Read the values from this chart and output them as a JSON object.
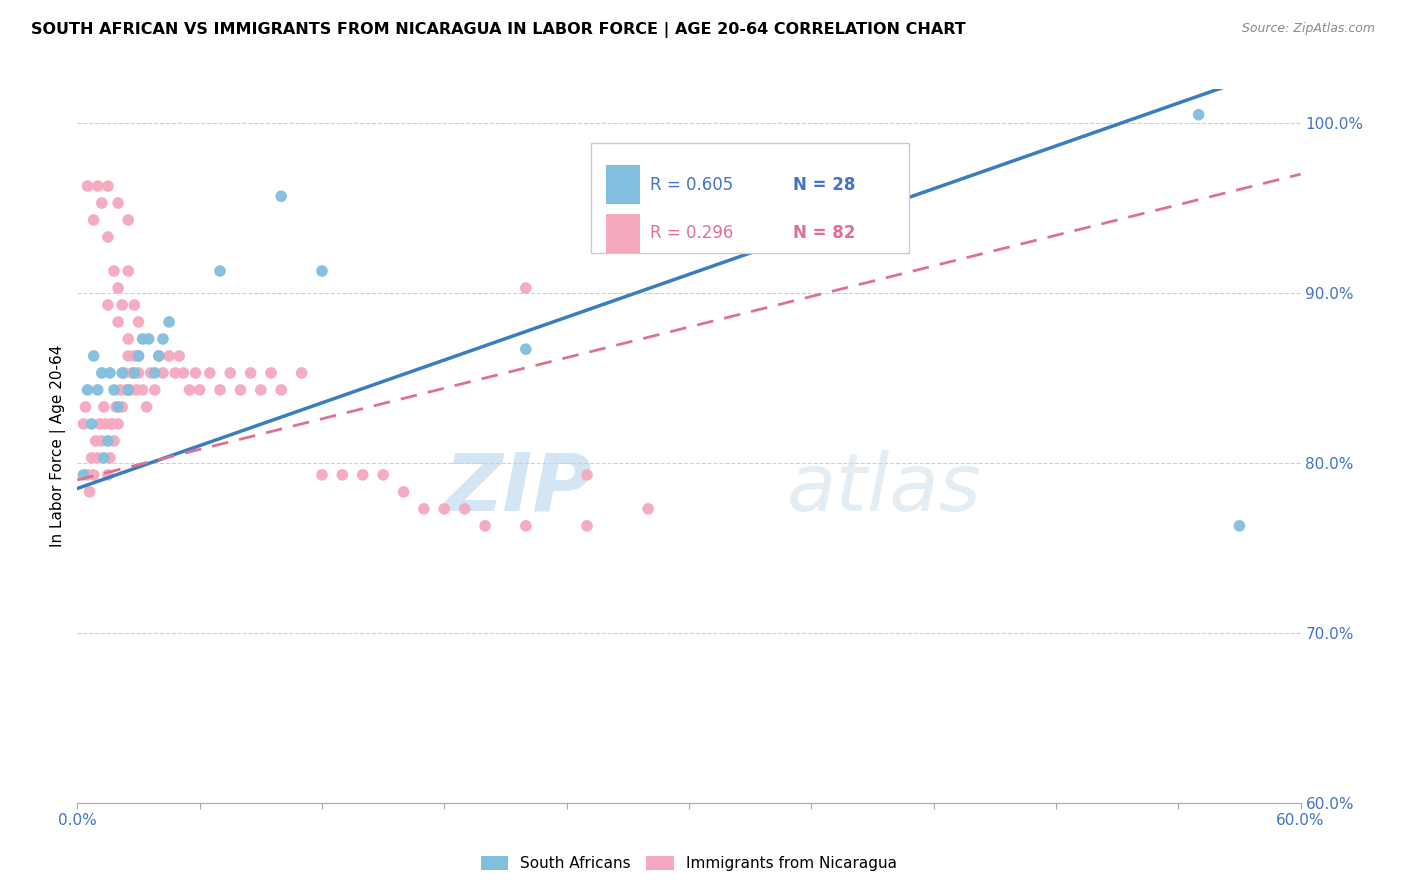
{
  "title": "SOUTH AFRICAN VS IMMIGRANTS FROM NICARAGUA IN LABOR FORCE | AGE 20-64 CORRELATION CHART",
  "source": "Source: ZipAtlas.com",
  "ylabel": "In Labor Force | Age 20-64",
  "xlim": [
    0.0,
    0.6
  ],
  "ylim": [
    0.6,
    1.02
  ],
  "yticks": [
    0.6,
    0.7,
    0.8,
    0.9,
    1.0
  ],
  "ytick_labels": [
    "60.0%",
    "70.0%",
    "80.0%",
    "90.0%",
    "100.0%"
  ],
  "xtick_positions": [
    0.0,
    0.06,
    0.12,
    0.18,
    0.24,
    0.3,
    0.36,
    0.42,
    0.48,
    0.54,
    0.6
  ],
  "xtick_labels": [
    "0.0%",
    "",
    "",
    "",
    "",
    "",
    "",
    "",
    "",
    "",
    "60.0%"
  ],
  "blue_R": 0.605,
  "blue_N": 28,
  "pink_R": 0.296,
  "pink_N": 82,
  "blue_color": "#82bede",
  "pink_color": "#f5a8be",
  "trend_blue_color": "#3a7dbf",
  "trend_pink_color": "#e07090",
  "watermark_zip": "ZIP",
  "watermark_atlas": "atlas",
  "blue_scatter_x": [
    0.003,
    0.005,
    0.007,
    0.008,
    0.01,
    0.012,
    0.013,
    0.015,
    0.016,
    0.018,
    0.02,
    0.022,
    0.025,
    0.028,
    0.03,
    0.032,
    0.035,
    0.038,
    0.04,
    0.042,
    0.045,
    0.07,
    0.1,
    0.12,
    0.22,
    0.285,
    0.55,
    0.57
  ],
  "blue_scatter_y": [
    0.793,
    0.843,
    0.823,
    0.863,
    0.843,
    0.853,
    0.803,
    0.813,
    0.853,
    0.843,
    0.833,
    0.853,
    0.843,
    0.853,
    0.863,
    0.873,
    0.873,
    0.853,
    0.863,
    0.873,
    0.883,
    0.913,
    0.957,
    0.913,
    0.867,
    0.963,
    1.005,
    0.763
  ],
  "pink_scatter_x": [
    0.003,
    0.004,
    0.005,
    0.006,
    0.007,
    0.008,
    0.009,
    0.01,
    0.011,
    0.012,
    0.013,
    0.014,
    0.015,
    0.016,
    0.017,
    0.018,
    0.019,
    0.02,
    0.021,
    0.022,
    0.023,
    0.024,
    0.025,
    0.026,
    0.027,
    0.028,
    0.029,
    0.03,
    0.032,
    0.034,
    0.036,
    0.038,
    0.04,
    0.042,
    0.045,
    0.048,
    0.05,
    0.052,
    0.055,
    0.058,
    0.06,
    0.065,
    0.07,
    0.075,
    0.08,
    0.085,
    0.09,
    0.095,
    0.1,
    0.11,
    0.12,
    0.13,
    0.14,
    0.15,
    0.16,
    0.17,
    0.18,
    0.19,
    0.2,
    0.22,
    0.25,
    0.28,
    0.005,
    0.008,
    0.01,
    0.012,
    0.015,
    0.018,
    0.02,
    0.022,
    0.025,
    0.028,
    0.03,
    0.015,
    0.02,
    0.025,
    0.015,
    0.02,
    0.025,
    0.03,
    0.22,
    0.25
  ],
  "pink_scatter_y": [
    0.823,
    0.833,
    0.793,
    0.783,
    0.803,
    0.793,
    0.813,
    0.803,
    0.823,
    0.813,
    0.833,
    0.823,
    0.793,
    0.803,
    0.823,
    0.813,
    0.833,
    0.823,
    0.843,
    0.833,
    0.853,
    0.843,
    0.863,
    0.843,
    0.853,
    0.863,
    0.843,
    0.853,
    0.843,
    0.833,
    0.853,
    0.843,
    0.863,
    0.853,
    0.863,
    0.853,
    0.863,
    0.853,
    0.843,
    0.853,
    0.843,
    0.853,
    0.843,
    0.853,
    0.843,
    0.853,
    0.843,
    0.853,
    0.843,
    0.853,
    0.793,
    0.793,
    0.793,
    0.793,
    0.783,
    0.773,
    0.773,
    0.773,
    0.763,
    0.763,
    0.793,
    0.773,
    0.963,
    0.943,
    0.963,
    0.953,
    0.933,
    0.913,
    0.903,
    0.893,
    0.913,
    0.893,
    0.883,
    0.963,
    0.953,
    0.943,
    0.893,
    0.883,
    0.873,
    0.863,
    0.903,
    0.763
  ]
}
